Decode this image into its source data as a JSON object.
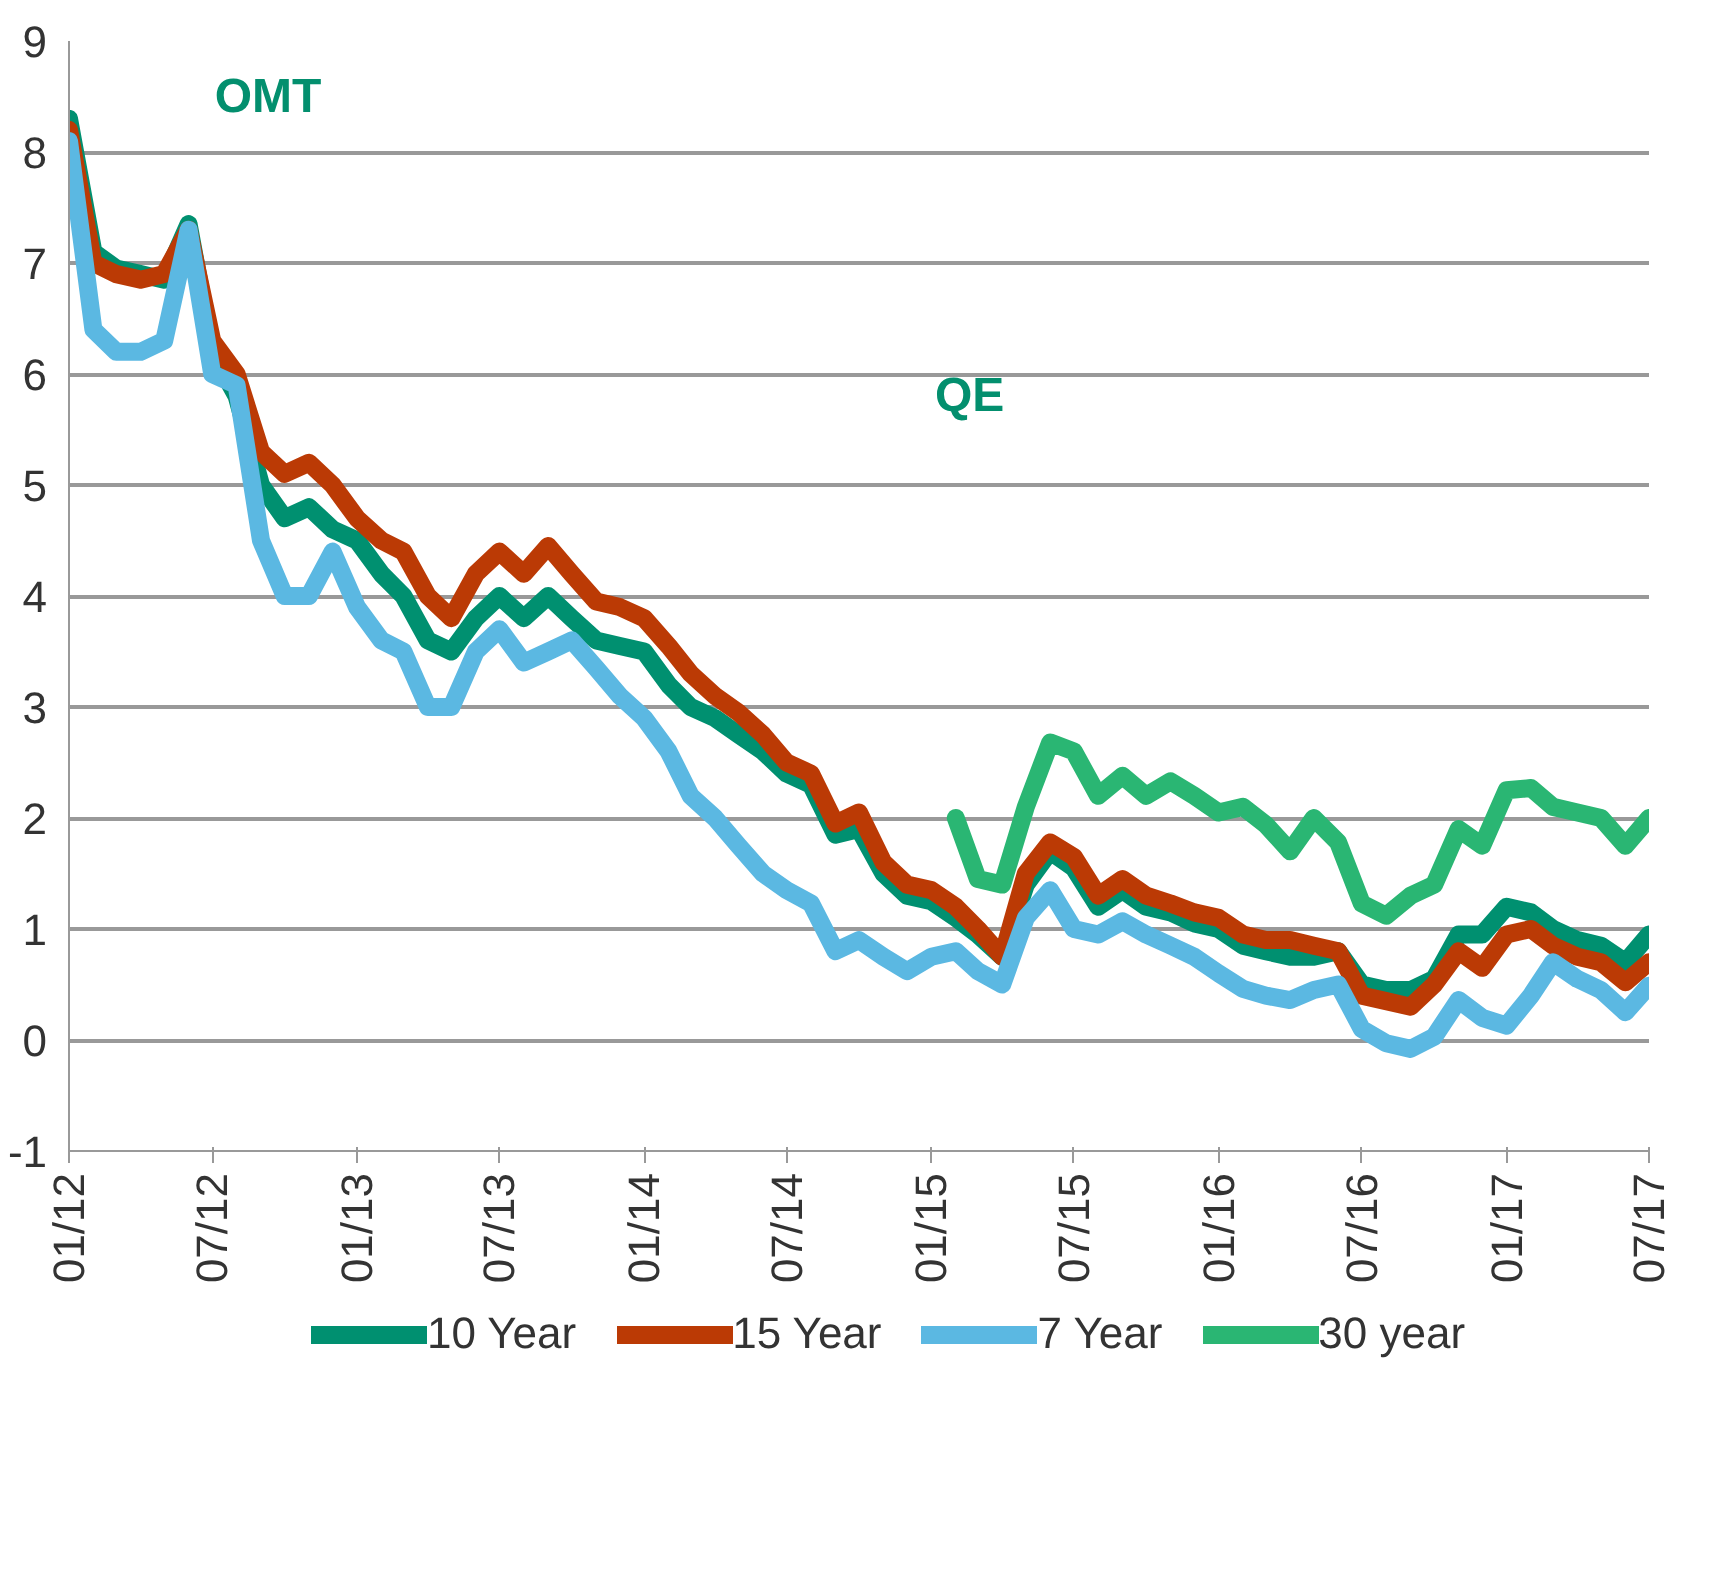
{
  "chart_data": {
    "type": "line",
    "x": [
      "2012-01",
      "2012-02",
      "2012-03",
      "2012-04",
      "2012-05",
      "2012-06",
      "2012-07",
      "2012-08",
      "2012-09",
      "2012-10",
      "2012-11",
      "2012-12",
      "2013-01",
      "2013-02",
      "2013-03",
      "2013-04",
      "2013-05",
      "2013-06",
      "2013-07",
      "2013-08",
      "2013-09",
      "2013-10",
      "2013-11",
      "2013-12",
      "2014-01",
      "2014-02",
      "2014-03",
      "2014-04",
      "2014-05",
      "2014-06",
      "2014-07",
      "2014-08",
      "2014-09",
      "2014-10",
      "2014-11",
      "2014-12",
      "2015-01",
      "2015-02",
      "2015-03",
      "2015-04",
      "2015-05",
      "2015-06",
      "2015-07",
      "2015-08",
      "2015-09",
      "2015-10",
      "2015-11",
      "2015-12",
      "2016-01",
      "2016-02",
      "2016-03",
      "2016-04",
      "2016-05",
      "2016-06",
      "2016-07",
      "2016-08",
      "2016-09",
      "2016-10",
      "2016-11",
      "2016-12",
      "2017-01",
      "2017-02",
      "2017-03",
      "2017-04",
      "2017-05",
      "2017-06",
      "2017-07"
    ],
    "series": [
      {
        "name": "10 Year",
        "color": "#009070",
        "values": [
          8.3,
          7.1,
          6.95,
          6.9,
          6.85,
          7.35,
          6.2,
          5.8,
          5.0,
          4.7,
          4.8,
          4.6,
          4.5,
          4.2,
          4.0,
          3.6,
          3.5,
          3.8,
          4.0,
          3.8,
          4.0,
          3.8,
          3.6,
          3.55,
          3.5,
          3.2,
          3.0,
          2.9,
          2.75,
          2.6,
          2.4,
          2.3,
          1.85,
          1.9,
          1.5,
          1.3,
          1.25,
          1.1,
          0.95,
          0.75,
          1.4,
          1.7,
          1.55,
          1.2,
          1.35,
          1.2,
          1.15,
          1.05,
          1.0,
          0.85,
          0.8,
          0.75,
          0.75,
          0.8,
          0.5,
          0.45,
          0.45,
          0.55,
          0.95,
          0.95,
          1.2,
          1.15,
          1.0,
          0.9,
          0.85,
          0.7,
          0.95
        ]
      },
      {
        "name": "15 Year",
        "color": "#bb3a05",
        "values": [
          8.2,
          7.0,
          6.9,
          6.85,
          6.9,
          7.3,
          6.3,
          6.0,
          5.3,
          5.1,
          5.2,
          5.0,
          4.7,
          4.5,
          4.4,
          4.0,
          3.8,
          4.2,
          4.4,
          4.2,
          4.45,
          4.2,
          3.95,
          3.9,
          3.8,
          3.55,
          3.3,
          3.1,
          2.95,
          2.75,
          2.5,
          2.4,
          1.95,
          2.05,
          1.6,
          1.4,
          1.35,
          1.2,
          1.0,
          0.75,
          1.5,
          1.78,
          1.65,
          1.3,
          1.45,
          1.3,
          1.23,
          1.15,
          1.1,
          0.95,
          0.9,
          0.9,
          0.85,
          0.8,
          0.4,
          0.35,
          0.3,
          0.5,
          0.8,
          0.65,
          0.95,
          1.0,
          0.85,
          0.75,
          0.7,
          0.52,
          0.7
        ]
      },
      {
        "name": "7 Year",
        "color": "#5bb8e2",
        "values": [
          8.1,
          6.4,
          6.2,
          6.2,
          6.3,
          7.3,
          6.0,
          5.9,
          4.5,
          4.0,
          4.0,
          4.4,
          3.9,
          3.6,
          3.5,
          3.0,
          3.0,
          3.5,
          3.7,
          3.4,
          3.5,
          3.6,
          3.35,
          3.1,
          2.9,
          2.6,
          2.2,
          2.0,
          1.75,
          1.5,
          1.35,
          1.23,
          0.8,
          0.9,
          0.75,
          0.62,
          0.75,
          0.8,
          0.62,
          0.5,
          1.1,
          1.35,
          1.0,
          0.95,
          1.07,
          0.95,
          0.85,
          0.75,
          0.6,
          0.46,
          0.4,
          0.36,
          0.45,
          0.5,
          0.1,
          -0.03,
          -0.08,
          0.03,
          0.36,
          0.2,
          0.13,
          0.4,
          0.7,
          0.55,
          0.45,
          0.25,
          0.49
        ]
      },
      {
        "name": "30 year",
        "color": "#2ab673",
        "values": [
          null,
          null,
          null,
          null,
          null,
          null,
          null,
          null,
          null,
          null,
          null,
          null,
          null,
          null,
          null,
          null,
          null,
          null,
          null,
          null,
          null,
          null,
          null,
          null,
          null,
          null,
          null,
          null,
          null,
          null,
          null,
          null,
          null,
          null,
          null,
          null,
          null,
          2.0,
          1.45,
          1.4,
          2.1,
          2.68,
          2.6,
          2.2,
          2.38,
          2.2,
          2.33,
          2.2,
          2.05,
          2.1,
          1.94,
          1.7,
          2.0,
          1.78,
          1.23,
          1.12,
          1.3,
          1.4,
          1.9,
          1.75,
          2.25,
          2.27,
          2.1,
          2.05,
          2.0,
          1.75,
          2.0
        ]
      }
    ],
    "xlim": [
      "2012-01",
      "2017-07"
    ],
    "xticks": [
      {
        "value": "2012-01",
        "label": "01/12"
      },
      {
        "value": "2012-07",
        "label": "07/12"
      },
      {
        "value": "2013-01",
        "label": "01/13"
      },
      {
        "value": "2013-07",
        "label": "07/13"
      },
      {
        "value": "2014-01",
        "label": "01/14"
      },
      {
        "value": "2014-07",
        "label": "07/14"
      },
      {
        "value": "2015-01",
        "label": "01/15"
      },
      {
        "value": "2015-07",
        "label": "07/15"
      },
      {
        "value": "2016-01",
        "label": "01/16"
      },
      {
        "value": "2016-07",
        "label": "07/16"
      },
      {
        "value": "2017-01",
        "label": "01/17"
      },
      {
        "value": "2017-07",
        "label": "07/17"
      }
    ],
    "ylim": [
      -1,
      9
    ],
    "yticks": [
      -1,
      0,
      1,
      2,
      3,
      4,
      5,
      6,
      7,
      8,
      9
    ],
    "grid": "y",
    "legend": "bottom",
    "annotations": [
      "OMT",
      "QE"
    ]
  }
}
